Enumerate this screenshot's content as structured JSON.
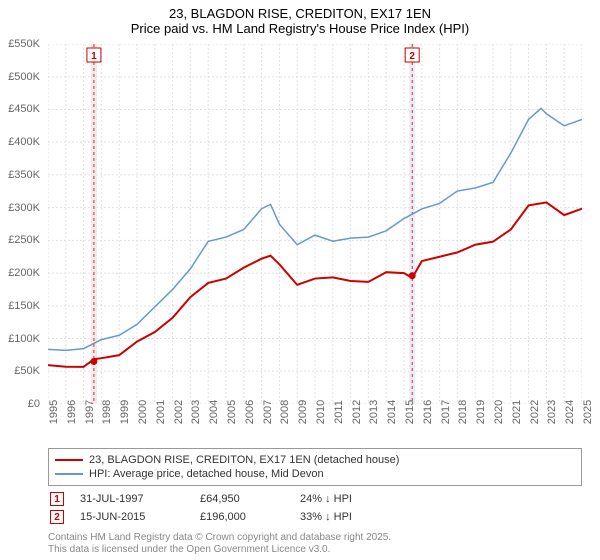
{
  "title": {
    "line1": "23, BLAGDON RISE, CREDITON, EX17 1EN",
    "line2": "Price paid vs. HM Land Registry's House Price Index (HPI)"
  },
  "chart": {
    "type": "line",
    "background_color": "#ffffff",
    "grid_color": "#e0e0e0",
    "grid_dash": "2,2",
    "x_range": [
      1995,
      2025
    ],
    "y_range": [
      0,
      550
    ],
    "y_ticks": [
      0,
      50,
      100,
      150,
      200,
      250,
      300,
      350,
      400,
      450,
      500,
      550
    ],
    "y_tick_labels": [
      "£0",
      "£50K",
      "£100K",
      "£150K",
      "£200K",
      "£250K",
      "£300K",
      "£350K",
      "£400K",
      "£450K",
      "£500K",
      "£550K"
    ],
    "x_ticks": [
      1995,
      1996,
      1997,
      1998,
      1999,
      2000,
      2001,
      2002,
      2003,
      2004,
      2005,
      2006,
      2007,
      2008,
      2009,
      2010,
      2011,
      2012,
      2013,
      2014,
      2015,
      2016,
      2017,
      2018,
      2019,
      2020,
      2021,
      2022,
      2023,
      2024,
      2025
    ],
    "axis_label_color": "#666666",
    "axis_label_fontsize": 11,
    "series": [
      {
        "name": "property",
        "label": "23, BLAGDON RISE, CREDITON, EX17 1EN (detached house)",
        "color": "#cc0000",
        "width": 2,
        "data": [
          [
            1995,
            56
          ],
          [
            1996,
            57
          ],
          [
            1997,
            60
          ],
          [
            1997.58,
            65
          ],
          [
            1998,
            70
          ],
          [
            1999,
            78
          ],
          [
            2000,
            92
          ],
          [
            2001,
            110
          ],
          [
            2002,
            135
          ],
          [
            2003,
            160
          ],
          [
            2004,
            185
          ],
          [
            2005,
            195
          ],
          [
            2006,
            205
          ],
          [
            2007,
            222
          ],
          [
            2007.5,
            230
          ],
          [
            2008,
            210
          ],
          [
            2009,
            182
          ],
          [
            2010,
            195
          ],
          [
            2011,
            190
          ],
          [
            2012,
            188
          ],
          [
            2013,
            190
          ],
          [
            2014,
            198
          ],
          [
            2015,
            200
          ],
          [
            2015.46,
            196
          ],
          [
            2016,
            215
          ],
          [
            2017,
            225
          ],
          [
            2018,
            235
          ],
          [
            2019,
            240
          ],
          [
            2020,
            248
          ],
          [
            2021,
            270
          ],
          [
            2022,
            300
          ],
          [
            2023,
            308
          ],
          [
            2024,
            292
          ],
          [
            2025,
            295
          ]
        ]
      },
      {
        "name": "hpi",
        "label": "HPI: Average price, detached house, Mid Devon",
        "color": "#6699cc",
        "width": 1.5,
        "data": [
          [
            1995,
            80
          ],
          [
            1996,
            82
          ],
          [
            1997,
            88
          ],
          [
            1998,
            95
          ],
          [
            1999,
            105
          ],
          [
            2000,
            125
          ],
          [
            2001,
            145
          ],
          [
            2002,
            175
          ],
          [
            2003,
            210
          ],
          [
            2004,
            245
          ],
          [
            2005,
            255
          ],
          [
            2006,
            270
          ],
          [
            2007,
            295
          ],
          [
            2007.5,
            305
          ],
          [
            2008,
            278
          ],
          [
            2009,
            240
          ],
          [
            2010,
            258
          ],
          [
            2011,
            252
          ],
          [
            2012,
            250
          ],
          [
            2013,
            255
          ],
          [
            2014,
            268
          ],
          [
            2015,
            280
          ],
          [
            2016,
            298
          ],
          [
            2017,
            310
          ],
          [
            2018,
            322
          ],
          [
            2019,
            330
          ],
          [
            2020,
            342
          ],
          [
            2021,
            380
          ],
          [
            2022,
            435
          ],
          [
            2022.7,
            455
          ],
          [
            2023,
            440
          ],
          [
            2024,
            425
          ],
          [
            2025,
            438
          ]
        ]
      }
    ],
    "markers": [
      {
        "num": "1",
        "x": 1997.58,
        "y": 65,
        "color": "#cc0000",
        "band_color": "#f4e8e8"
      },
      {
        "num": "2",
        "x": 2015.46,
        "y": 196,
        "color": "#cc0000",
        "band_color": "#e8ecf4"
      }
    ]
  },
  "legend": {
    "items": [
      {
        "color": "#cc0000",
        "label": "23, BLAGDON RISE, CREDITON, EX17 1EN (detached house)"
      },
      {
        "color": "#6699cc",
        "label": "HPI: Average price, detached house, Mid Devon"
      }
    ]
  },
  "marker_table": [
    {
      "num": "1",
      "date": "31-JUL-1997",
      "price": "£64,950",
      "diff": "24% ↓ HPI"
    },
    {
      "num": "2",
      "date": "15-JUN-2015",
      "price": "£196,000",
      "diff": "33% ↓ HPI"
    }
  ],
  "attribution": {
    "line1": "Contains HM Land Registry data © Crown copyright and database right 2025.",
    "line2": "This data is licensed under the Open Government Licence v3.0."
  }
}
